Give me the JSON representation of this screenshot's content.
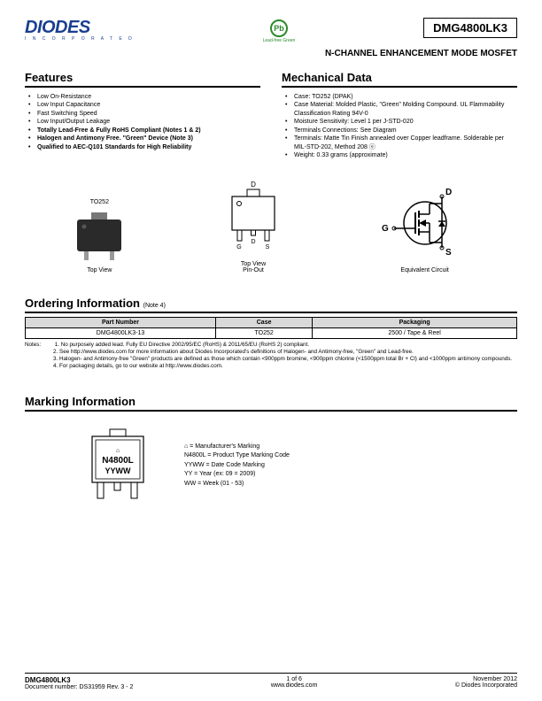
{
  "header": {
    "logo_main": "DIODES",
    "logo_sub": "I N C O R P O R A T E D",
    "pb_symbol": "Pb",
    "pb_label": "Lead-free Green",
    "part_number": "DMG4800LK3",
    "subtitle": "N-CHANNEL ENHANCEMENT MODE MOSFET"
  },
  "features": {
    "title": "Features",
    "items": [
      {
        "text": "Low On-Resistance",
        "bold": false
      },
      {
        "text": "Low Input Capacitance",
        "bold": false
      },
      {
        "text": "Fast Switching Speed",
        "bold": false
      },
      {
        "text": "Low Input/Output Leakage",
        "bold": false
      },
      {
        "text": "Totally Lead-Free & Fully RoHS Compliant (Notes 1 & 2)",
        "bold": true
      },
      {
        "text": "Halogen and Antimony Free. \"Green\" Device (Note 3)",
        "bold": true
      },
      {
        "text": "Qualified to AEC-Q101 Standards for High Reliability",
        "bold": true
      }
    ]
  },
  "mechanical": {
    "title": "Mechanical Data",
    "items": [
      "Case: TO252 (DPAK)",
      "Case Material: Molded Plastic, \"Green\" Molding Compound. UL Flammability Classification Rating 94V-0",
      "Moisture Sensitivity: Level 1 per J-STD-020",
      "Terminals Connections: See Diagram",
      "Terminals: Matte Tin Finish annealed over Copper leadframe. Solderable per MIL-STD-202, Method 208 ⓔ",
      "Weight: 0.33 grams (approximate)"
    ]
  },
  "diagrams": {
    "pkg_label_top": "TO252",
    "pkg_label_bot": "Top View",
    "pinout_d": "D",
    "pinout_g": "G",
    "pinout_s": "S",
    "pinout_label": "Top View\nPin-Out",
    "circuit_d": "D",
    "circuit_g": "G",
    "circuit_s": "S",
    "circuit_label": "Equivalent Circuit"
  },
  "ordering": {
    "title": "Ordering Information",
    "note_inline": "(Note 4)",
    "columns": [
      "Part Number",
      "Case",
      "Packaging"
    ],
    "row": [
      "DMG4800LK3-13",
      "TO252",
      "2500 / Tape & Reel"
    ],
    "notes_label": "Notes:",
    "notes": [
      "1. No purposely added lead. Fully EU Directive 2002/95/EC (RoHS) & 2011/65/EU (RoHS 2) compliant.",
      "2. See http://www.diodes.com for more information about Diodes Incorporated's definitions of Halogen- and Antimony-free, \"Green\" and Lead-free.",
      "3. Halogen- and Antimony-free \"Green\" products are defined as those which contain <900ppm bromine, <900ppm chlorine (<1500ppm total Br + Cl) and <1000ppm antimony compounds.",
      "4. For packaging details, go to our website at http://www.diodes.com."
    ]
  },
  "marking": {
    "title": "Marking Information",
    "chip_line1": "N4800L",
    "chip_line2": "YYWW",
    "legend": [
      "⌂ = Manufacturer's Marking",
      "N4800L = Product Type Marking Code",
      "YYWW = Date Code Marking",
      "YY = Year (ex: 09 = 2009)",
      "WW = Week (01 - 53)"
    ]
  },
  "footer": {
    "part": "DMG4800LK3",
    "doc": "Document number: DS31959 Rev. 3 - 2",
    "page": "1 of 6",
    "site": "www.diodes.com",
    "date": "November 2012",
    "copyright": "© Diodes Incorporated"
  },
  "colors": {
    "logo_blue": "#1a3f8f",
    "pb_green": "#2a8a2a",
    "table_header_bg": "#d9d9d9",
    "pkg_dark": "#2a2a2a",
    "pkg_tab": "#777777"
  }
}
